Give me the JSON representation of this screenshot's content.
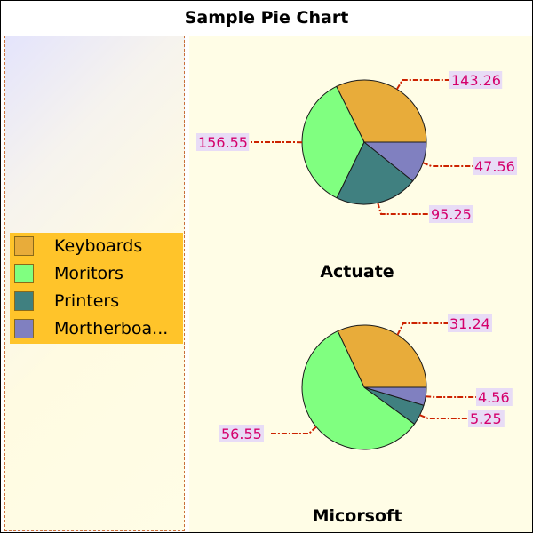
{
  "chart_data": {
    "type": "pie",
    "title": "Sample Pie Chart",
    "legend_position": "left",
    "categories": [
      "Keyboards",
      "Moritors",
      "Printers",
      "Mortherboa..."
    ],
    "colors": [
      "#e8ac3a",
      "#80ff80",
      "#408080",
      "#8080c0"
    ],
    "pies": [
      {
        "name": "Actuate",
        "values": [
          143.26,
          156.55,
          95.25,
          47.56
        ]
      },
      {
        "name": "Micorsoft",
        "values": [
          31.24,
          56.55,
          5.25,
          4.56
        ]
      }
    ]
  }
}
